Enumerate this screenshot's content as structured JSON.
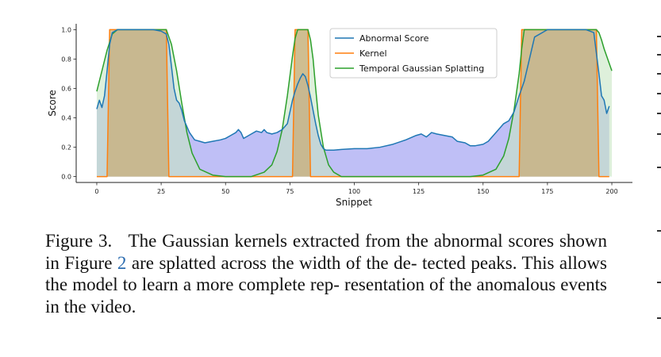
{
  "chart_data": {
    "type": "area",
    "xlabel": "Snippet",
    "ylabel": "Score",
    "xlim": [
      -8,
      208
    ],
    "ylim": [
      -0.04,
      1.04
    ],
    "xticks": [
      0,
      25,
      50,
      75,
      100,
      125,
      150,
      175,
      200
    ],
    "yticks": [
      0.0,
      0.2,
      0.4,
      0.6,
      0.8,
      1.0
    ],
    "grid": false,
    "legend_position": "top-center",
    "series": [
      {
        "name": "Abnormal Score",
        "color": "#1f77b4",
        "fill": "#b4b4f5",
        "x": [
          0,
          1,
          2,
          3,
          4,
          5,
          6,
          8,
          10,
          12,
          15,
          18,
          20,
          22,
          25,
          27,
          28,
          29,
          30,
          31,
          32,
          33,
          34,
          36,
          38,
          40,
          42,
          45,
          48,
          50,
          52,
          54,
          55,
          56,
          57,
          58,
          60,
          62,
          64,
          65,
          66,
          68,
          70,
          72,
          74,
          75,
          76,
          77,
          78,
          79,
          80,
          81,
          82,
          83,
          84,
          85,
          86,
          87,
          88,
          89,
          90,
          92,
          95,
          100,
          105,
          110,
          115,
          120,
          124,
          126,
          128,
          130,
          132,
          135,
          138,
          140,
          143,
          145,
          147,
          150,
          152,
          154,
          156,
          158,
          160,
          162,
          164,
          166,
          168,
          170,
          175,
          180,
          185,
          190,
          193,
          195,
          196,
          197,
          198,
          199
        ],
        "values": [
          0.46,
          0.52,
          0.47,
          0.55,
          0.72,
          0.9,
          0.98,
          1.0,
          1.0,
          1.0,
          1.0,
          1.0,
          1.0,
          1.0,
          0.99,
          0.97,
          0.9,
          0.75,
          0.6,
          0.52,
          0.5,
          0.45,
          0.38,
          0.3,
          0.25,
          0.24,
          0.23,
          0.24,
          0.25,
          0.26,
          0.28,
          0.3,
          0.32,
          0.3,
          0.26,
          0.27,
          0.29,
          0.31,
          0.3,
          0.32,
          0.3,
          0.29,
          0.3,
          0.32,
          0.36,
          0.44,
          0.52,
          0.58,
          0.63,
          0.67,
          0.7,
          0.68,
          0.62,
          0.54,
          0.45,
          0.36,
          0.28,
          0.22,
          0.19,
          0.18,
          0.18,
          0.18,
          0.185,
          0.19,
          0.19,
          0.2,
          0.22,
          0.25,
          0.28,
          0.29,
          0.27,
          0.3,
          0.29,
          0.28,
          0.27,
          0.24,
          0.23,
          0.21,
          0.21,
          0.22,
          0.24,
          0.28,
          0.32,
          0.36,
          0.38,
          0.44,
          0.55,
          0.65,
          0.8,
          0.95,
          1.0,
          1.0,
          1.0,
          1.0,
          0.98,
          0.7,
          0.55,
          0.52,
          0.43,
          0.48
        ]
      },
      {
        "name": "Kernel",
        "color": "#ff7f0e",
        "fill": "#c9ad78",
        "segments": [
          [
            5,
            27
          ],
          [
            77,
            82
          ],
          [
            165,
            194
          ]
        ],
        "x": [
          0,
          4,
          5,
          27,
          28,
          76,
          77,
          82,
          83,
          164,
          165,
          194,
          195,
          199
        ],
        "values": [
          0,
          0,
          1,
          1,
          0,
          0,
          1,
          1,
          0,
          0,
          1,
          1,
          0,
          0
        ]
      },
      {
        "name": "Temporal Gaussian Splatting",
        "color": "#2ca02c",
        "fill": "#c8e6c3",
        "x": [
          0,
          2,
          4,
          6,
          8,
          10,
          25,
          27,
          29,
          31,
          33,
          35,
          37,
          40,
          45,
          50,
          55,
          60,
          65,
          68,
          70,
          72,
          74,
          76,
          77,
          78,
          79,
          80,
          81,
          82,
          83,
          84,
          85,
          86,
          88,
          90,
          92,
          95,
          100,
          110,
          120,
          130,
          140,
          145,
          150,
          155,
          158,
          160,
          162,
          164,
          165,
          166,
          194,
          195,
          196,
          197,
          198,
          200
        ],
        "values": [
          0.58,
          0.72,
          0.86,
          0.97,
          1.0,
          1.0,
          1.0,
          1.0,
          0.9,
          0.72,
          0.5,
          0.3,
          0.16,
          0.05,
          0.01,
          0.0,
          0.0,
          0.0,
          0.03,
          0.08,
          0.17,
          0.32,
          0.55,
          0.82,
          0.94,
          1.0,
          1.0,
          1.0,
          1.0,
          1.0,
          0.93,
          0.8,
          0.6,
          0.42,
          0.2,
          0.08,
          0.03,
          0.0,
          0.0,
          0.0,
          0.0,
          0.0,
          0.0,
          0.0,
          0.01,
          0.05,
          0.14,
          0.26,
          0.45,
          0.7,
          0.87,
          1.0,
          1.0,
          0.98,
          0.93,
          0.87,
          0.82,
          0.72
        ]
      }
    ]
  },
  "caption": {
    "label": "Figure 3.",
    "line1": "The Gaussian kernels extracted from the abnormal",
    "line2_pre": "scores shown in Figure",
    "line2_ref": "2",
    "line2_post": "are splatted across the width of the de-",
    "line3": "tected peaks. This allows the model to learn a more complete rep-",
    "line4": "resentation of the anomalous events in the video."
  }
}
